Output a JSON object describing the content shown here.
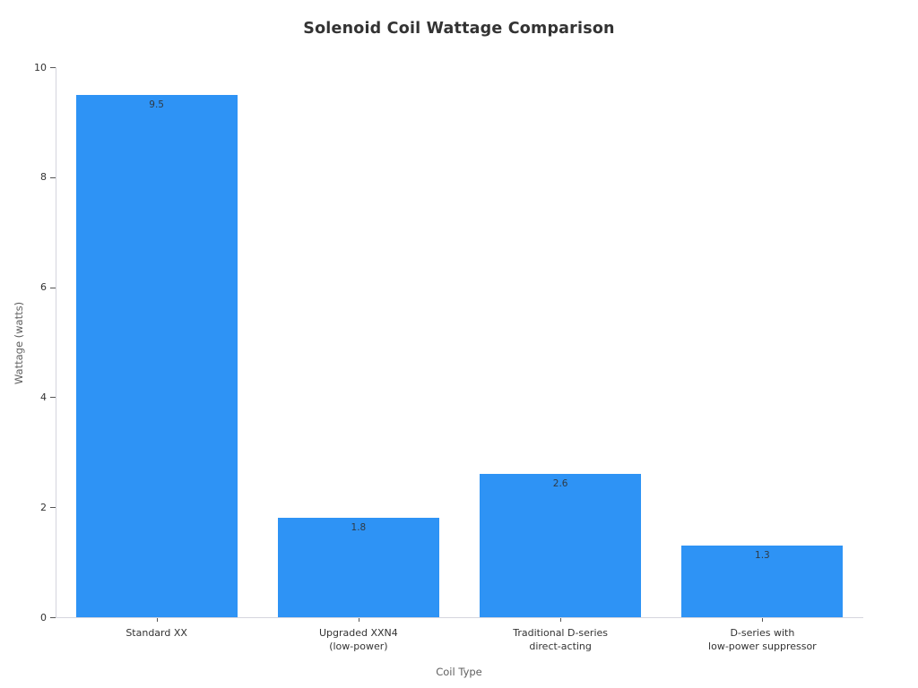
{
  "chart_data": {
    "type": "bar",
    "title": "Solenoid Coil Wattage Comparison",
    "xlabel": "Coil Type",
    "ylabel": "Wattage (watts)",
    "categories": [
      "Standard XX",
      "Upgraded XXN4\n(low-power)",
      "Traditional D-series\ndirect-acting",
      "D-series with\nlow-power suppressor"
    ],
    "values": [
      9.5,
      1.8,
      2.6,
      1.3
    ],
    "value_labels": [
      "9.5",
      "1.8",
      "2.6",
      "1.3"
    ],
    "ylim": [
      0,
      10
    ],
    "yticks": [
      0,
      2,
      4,
      6,
      8,
      10
    ],
    "grid": false,
    "legend": "none",
    "colors": {
      "bar": "#2e93f5",
      "spine": "#d5d5dd",
      "title_text": "#333333",
      "tick_text": "#333333",
      "axis_label_text": "#606060",
      "value_label_text": "#2f3a45",
      "background": "#ffffff"
    }
  }
}
